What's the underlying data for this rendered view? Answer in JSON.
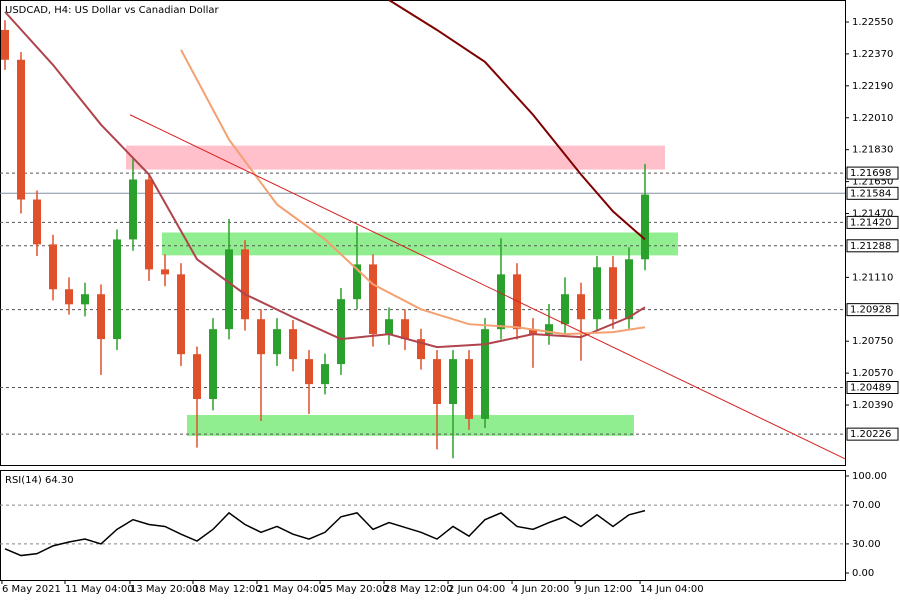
{
  "chart_data": [
    {
      "type": "candlestick",
      "title": "USDCAD, H4:  US Dollar vs Canadian Dollar",
      "xlim": [
        -0.3125,
        52.5
      ],
      "xticks": [
        {
          "value": -0.19,
          "label": "6 May 2021"
        },
        {
          "value": 3.75,
          "label": "11 May 04:00"
        },
        {
          "value": 7.81,
          "label": "13 May 20:00"
        },
        {
          "value": 11.75,
          "label": "18 May 12:00"
        },
        {
          "value": 15.75,
          "label": "21 May 04:00"
        },
        {
          "value": 19.69,
          "label": "25 May 20:00"
        },
        {
          "value": 23.69,
          "label": "28 May 12:00"
        },
        {
          "value": 27.69,
          "label": "2 Jun 04:00"
        },
        {
          "value": 31.69,
          "label": "4 Jun 20:00"
        },
        {
          "value": 35.63,
          "label": "9 Jun 12:00"
        },
        {
          "value": 39.69,
          "label": "14 Jun 04:00"
        }
      ],
      "ylim": [
        1.20052,
        1.22674
      ],
      "yticks": [
        {
          "value": 1.2255,
          "label": "1.22550"
        },
        {
          "value": 1.2237,
          "label": "1.22370"
        },
        {
          "value": 1.2219,
          "label": "1.22190"
        },
        {
          "value": 1.2201,
          "label": "1.22010"
        },
        {
          "value": 1.2183,
          "label": "1.21830"
        },
        {
          "value": 1.2165,
          "label": "1.21650"
        },
        {
          "value": 1.2147,
          "label": "1.21470"
        },
        {
          "value": 1.2111,
          "label": "1.21110"
        },
        {
          "value": 1.2075,
          "label": "1.20750"
        },
        {
          "value": 1.2057,
          "label": "1.20570"
        },
        {
          "value": 1.2039,
          "label": "1.20390"
        }
      ],
      "up_color": "#2ca02c",
      "down_color": "#e0502a",
      "ohlc": [
        [
          1.22505,
          1.2256,
          1.2228,
          1.22337
        ],
        [
          1.22337,
          1.2238,
          1.2147,
          1.21549
        ],
        [
          1.21549,
          1.216,
          1.2123,
          1.21296
        ],
        [
          1.21296,
          1.2135,
          1.2098,
          1.21043
        ],
        [
          1.21043,
          1.2111,
          1.209,
          1.20958
        ],
        [
          1.20958,
          1.2108,
          1.2089,
          1.21015
        ],
        [
          1.21015,
          1.2107,
          1.2056,
          1.20762
        ],
        [
          1.20762,
          1.2138,
          1.207,
          1.21324
        ],
        [
          1.21324,
          1.2178,
          1.2126,
          1.21662
        ],
        [
          1.21662,
          1.217,
          1.2109,
          1.21155
        ],
        [
          1.21155,
          1.2124,
          1.2106,
          1.21127
        ],
        [
          1.21127,
          1.2119,
          1.2061,
          1.20677
        ],
        [
          1.20677,
          1.2072,
          1.2015,
          1.20424
        ],
        [
          1.20424,
          1.2088,
          1.2036,
          1.20818
        ],
        [
          1.20818,
          1.2144,
          1.2076,
          1.21268
        ],
        [
          1.21268,
          1.2132,
          1.2081,
          1.20874
        ],
        [
          1.20874,
          1.2093,
          1.203,
          1.20677
        ],
        [
          1.20677,
          1.2088,
          1.2061,
          1.20818
        ],
        [
          1.20818,
          1.2087,
          1.2058,
          1.20649
        ],
        [
          1.20649,
          1.207,
          1.2034,
          1.20508
        ],
        [
          1.20508,
          1.2068,
          1.2045,
          1.20621
        ],
        [
          1.20621,
          1.2105,
          1.2056,
          1.20987
        ],
        [
          1.20987,
          1.214,
          1.2093,
          1.21183
        ],
        [
          1.21183,
          1.2124,
          1.2072,
          1.2079
        ],
        [
          1.2079,
          1.2094,
          1.2073,
          1.20874
        ],
        [
          1.20874,
          1.2093,
          1.207,
          1.20762
        ],
        [
          1.20762,
          1.2082,
          1.2059,
          1.20649
        ],
        [
          1.20649,
          1.207,
          1.2014,
          1.20396
        ],
        [
          1.20396,
          1.207,
          1.2009,
          1.20649
        ],
        [
          1.20649,
          1.207,
          1.2025,
          1.20312
        ],
        [
          1.20312,
          1.2088,
          1.2026,
          1.20818
        ],
        [
          1.20818,
          1.2133,
          1.2076,
          1.21127
        ],
        [
          1.21127,
          1.2119,
          1.2076,
          1.20818
        ],
        [
          1.20818,
          1.2088,
          1.206,
          1.2079
        ],
        [
          1.2079,
          1.2096,
          1.2073,
          1.20846
        ],
        [
          1.20846,
          1.2111,
          1.2079,
          1.21015
        ],
        [
          1.21015,
          1.2108,
          1.2064,
          1.20874
        ],
        [
          1.20874,
          1.2123,
          1.2081,
          1.21167
        ],
        [
          1.21167,
          1.2123,
          1.2082,
          1.20874
        ],
        [
          1.20874,
          1.2128,
          1.2082,
          1.21212
        ],
        [
          1.21212,
          1.2175,
          1.2115,
          1.21577
        ]
      ],
      "series": [
        {
          "color": "#b0444c",
          "x": [
            0,
            3,
            6,
            9,
            12,
            15,
            18,
            21,
            24,
            27,
            30,
            33,
            36,
            39,
            40
          ],
          "values": [
            1.22607,
            1.22308,
            1.21971,
            1.2169,
            1.21212,
            1.21015,
            1.20885,
            1.20762,
            1.2079,
            1.20717,
            1.20733,
            1.2079,
            1.20773,
            1.20885,
            1.20942
          ]
        },
        {
          "color": "#f4a070",
          "x": [
            11,
            14,
            17,
            20,
            23,
            26,
            29,
            32,
            35,
            38,
            40
          ],
          "values": [
            1.22393,
            1.21887,
            1.21521,
            1.21324,
            1.21071,
            1.2093,
            1.20846,
            1.20829,
            1.2079,
            1.20801,
            1.20829
          ]
        },
        {
          "color": "#800000",
          "x": [
            24,
            27,
            30,
            33,
            36,
            38,
            40
          ],
          "values": [
            1.22674,
            1.22505,
            1.22325,
            1.22027,
            1.2169,
            1.21482,
            1.21324
          ]
        }
      ],
      "trendline": {
        "color": "#d62020",
        "x": [
          7.81,
          52.5
        ],
        "values": [
          1.22027,
          1.20087
        ]
      },
      "zones": [
        {
          "color": "#ffc0cb",
          "x": [
            7.56,
            41.25
          ],
          "range": [
            1.21718,
            1.21853
          ]
        },
        {
          "color": "#90ee90",
          "x": [
            9.81,
            42.06
          ],
          "range": [
            1.21234,
            1.21363
          ]
        },
        {
          "color": "#90ee90",
          "x": [
            11.375,
            39.31
          ],
          "range": [
            1.20216,
            1.20334
          ]
        }
      ],
      "levels": [
        {
          "value": 1.21698,
          "label": "1.21698",
          "style": "dashed"
        },
        {
          "value": 1.21584,
          "label": "1.21584",
          "style": "solid"
        },
        {
          "value": 1.2142,
          "label": "1.21420",
          "style": "dashed"
        },
        {
          "value": 1.21288,
          "label": "1.21288",
          "style": "dashed"
        },
        {
          "value": 1.20928,
          "label": "1.20928",
          "style": "dashed"
        },
        {
          "value": 1.20489,
          "label": "1.20489",
          "style": "dashed"
        },
        {
          "value": 1.20226,
          "label": "1.20226",
          "style": "dashed"
        }
      ]
    },
    {
      "type": "line",
      "title": "RSI(14) 64.30",
      "xlim": [
        -0.3125,
        52.5
      ],
      "ylim": [
        -7.2,
        106.2
      ],
      "yticks": [
        {
          "value": 100,
          "label": "100.00"
        },
        {
          "value": 70,
          "label": "70.00"
        },
        {
          "value": 30,
          "label": "30.00"
        },
        {
          "value": 0,
          "label": "0.00"
        }
      ],
      "levels": [
        30,
        70
      ],
      "color": "#000000",
      "values": [
        25,
        18,
        20,
        28,
        32,
        35,
        30,
        45,
        55,
        50,
        48,
        40,
        33,
        45,
        62,
        50,
        42,
        48,
        40,
        35,
        42,
        58,
        62,
        45,
        52,
        47,
        42,
        35,
        48,
        38,
        55,
        62,
        48,
        45,
        52,
        58,
        48,
        60,
        48,
        60,
        64.3
      ]
    }
  ]
}
